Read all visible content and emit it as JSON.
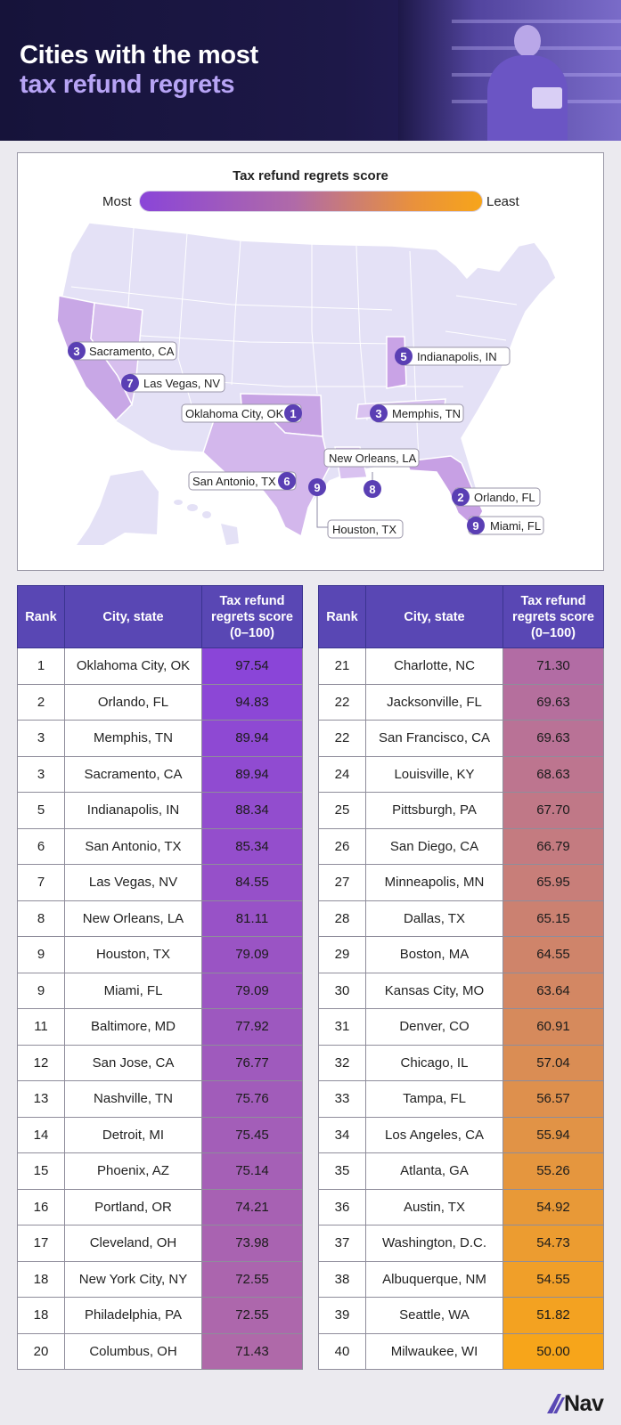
{
  "header": {
    "title_line1": "Cities with the most",
    "title_line2": "tax refund regrets"
  },
  "colors": {
    "most": "#8a45d8",
    "mid": "#b06aa8",
    "least": "#f7a51a",
    "header_bg": "#1d1848",
    "table_header": "#5947b4"
  },
  "legend": {
    "title": "Tax refund regrets score",
    "most_label": "Most",
    "least_label": "Least"
  },
  "map_labels": [
    {
      "rank": "3",
      "city": "Sacramento, CA"
    },
    {
      "rank": "7",
      "city": "Las Vegas, NV"
    },
    {
      "rank": "1",
      "city": "Oklahoma City, OK"
    },
    {
      "rank": "5",
      "city": "Indianapolis, IN"
    },
    {
      "rank": "3",
      "city": "Memphis, TN"
    },
    {
      "rank": "8",
      "city": "New Orleans, LA"
    },
    {
      "rank": "6",
      "city": "San Antonio, TX"
    },
    {
      "rank": "9",
      "city": "Houston, TX"
    },
    {
      "rank": "2",
      "city": "Orlando, FL"
    },
    {
      "rank": "9",
      "city": "Miami, FL"
    }
  ],
  "table": {
    "col_rank": "Rank",
    "col_city": "City, state",
    "col_score_l1": "Tax refund",
    "col_score_l2": "regrets score",
    "col_score_l3": "(0–100)"
  },
  "chart_data": {
    "type": "table",
    "title": "Cities with the most tax refund regrets",
    "value_label": "Tax refund regrets score (0–100)",
    "rows": [
      {
        "rank": "1",
        "city": "Oklahoma City, OK",
        "score": "97.54"
      },
      {
        "rank": "2",
        "city": "Orlando, FL",
        "score": "94.83"
      },
      {
        "rank": "3",
        "city": "Memphis, TN",
        "score": "89.94"
      },
      {
        "rank": "3",
        "city": "Sacramento, CA",
        "score": "89.94"
      },
      {
        "rank": "5",
        "city": "Indianapolis, IN",
        "score": "88.34"
      },
      {
        "rank": "6",
        "city": "San Antonio, TX",
        "score": "85.34"
      },
      {
        "rank": "7",
        "city": "Las Vegas, NV",
        "score": "84.55"
      },
      {
        "rank": "8",
        "city": "New Orleans, LA",
        "score": "81.11"
      },
      {
        "rank": "9",
        "city": "Houston, TX",
        "score": "79.09"
      },
      {
        "rank": "9",
        "city": "Miami, FL",
        "score": "79.09"
      },
      {
        "rank": "11",
        "city": "Baltimore, MD",
        "score": "77.92"
      },
      {
        "rank": "12",
        "city": "San Jose, CA",
        "score": "76.77"
      },
      {
        "rank": "13",
        "city": "Nashville, TN",
        "score": "75.76"
      },
      {
        "rank": "14",
        "city": "Detroit, MI",
        "score": "75.45"
      },
      {
        "rank": "15",
        "city": "Phoenix, AZ",
        "score": "75.14"
      },
      {
        "rank": "16",
        "city": "Portland, OR",
        "score": "74.21"
      },
      {
        "rank": "17",
        "city": "Cleveland, OH",
        "score": "73.98"
      },
      {
        "rank": "18",
        "city": "New York City, NY",
        "score": "72.55"
      },
      {
        "rank": "18",
        "city": "Philadelphia, PA",
        "score": "72.55"
      },
      {
        "rank": "20",
        "city": "Columbus, OH",
        "score": "71.43"
      },
      {
        "rank": "21",
        "city": "Charlotte, NC",
        "score": "71.30"
      },
      {
        "rank": "22",
        "city": "Jacksonville, FL",
        "score": "69.63"
      },
      {
        "rank": "22",
        "city": "San Francisco, CA",
        "score": "69.63"
      },
      {
        "rank": "24",
        "city": "Louisville, KY",
        "score": "68.63"
      },
      {
        "rank": "25",
        "city": "Pittsburgh, PA",
        "score": "67.70"
      },
      {
        "rank": "26",
        "city": "San Diego, CA",
        "score": "66.79"
      },
      {
        "rank": "27",
        "city": "Minneapolis, MN",
        "score": "65.95"
      },
      {
        "rank": "28",
        "city": "Dallas, TX",
        "score": "65.15"
      },
      {
        "rank": "29",
        "city": "Boston, MA",
        "score": "64.55"
      },
      {
        "rank": "30",
        "city": "Kansas City, MO",
        "score": "63.64"
      },
      {
        "rank": "31",
        "city": "Denver, CO",
        "score": "60.91"
      },
      {
        "rank": "32",
        "city": "Chicago, IL",
        "score": "57.04"
      },
      {
        "rank": "33",
        "city": "Tampa, FL",
        "score": "56.57"
      },
      {
        "rank": "34",
        "city": "Los Angeles, CA",
        "score": "55.94"
      },
      {
        "rank": "35",
        "city": "Atlanta, GA",
        "score": "55.26"
      },
      {
        "rank": "36",
        "city": "Austin, TX",
        "score": "54.92"
      },
      {
        "rank": "37",
        "city": "Washington, D.C.",
        "score": "54.73"
      },
      {
        "rank": "38",
        "city": "Albuquerque, NM",
        "score": "54.55"
      },
      {
        "rank": "39",
        "city": "Seattle, WA",
        "score": "51.82"
      },
      {
        "rank": "40",
        "city": "Milwaukee, WI",
        "score": "50.00"
      }
    ]
  },
  "footer": {
    "logo_text": "Nav"
  }
}
